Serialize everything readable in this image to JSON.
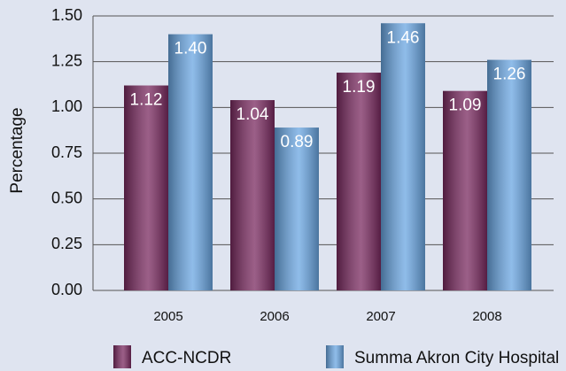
{
  "chart_data": {
    "type": "bar",
    "y_label": "Percentage",
    "categories": [
      "2005",
      "2006",
      "2007",
      "2008"
    ],
    "series": [
      {
        "name": "ACC-NCDR",
        "color": "#7a2a60",
        "values": [
          1.12,
          1.04,
          1.19,
          1.09
        ],
        "value_labels": [
          "1.12",
          "1.04",
          "1.19",
          "1.09"
        ]
      },
      {
        "name": "Summa Akron City Hospital",
        "color": "#6aa6e2",
        "values": [
          1.4,
          0.89,
          1.46,
          1.26
        ],
        "value_labels": [
          "1.40",
          "0.89",
          "1.46",
          "1.26"
        ]
      }
    ],
    "ylim": [
      0,
      1.5
    ],
    "yticks": [
      {
        "value": 0,
        "label": "0.00"
      },
      {
        "value": 0.25,
        "label": "0.25"
      },
      {
        "value": 0.5,
        "label": "0.50"
      },
      {
        "value": 0.75,
        "label": "0.75"
      },
      {
        "value": 1,
        "label": "1.00"
      },
      {
        "value": 1.25,
        "label": "1.25"
      },
      {
        "value": 1.5,
        "label": "1.50"
      }
    ],
    "grid": true,
    "legend": "bottom"
  }
}
